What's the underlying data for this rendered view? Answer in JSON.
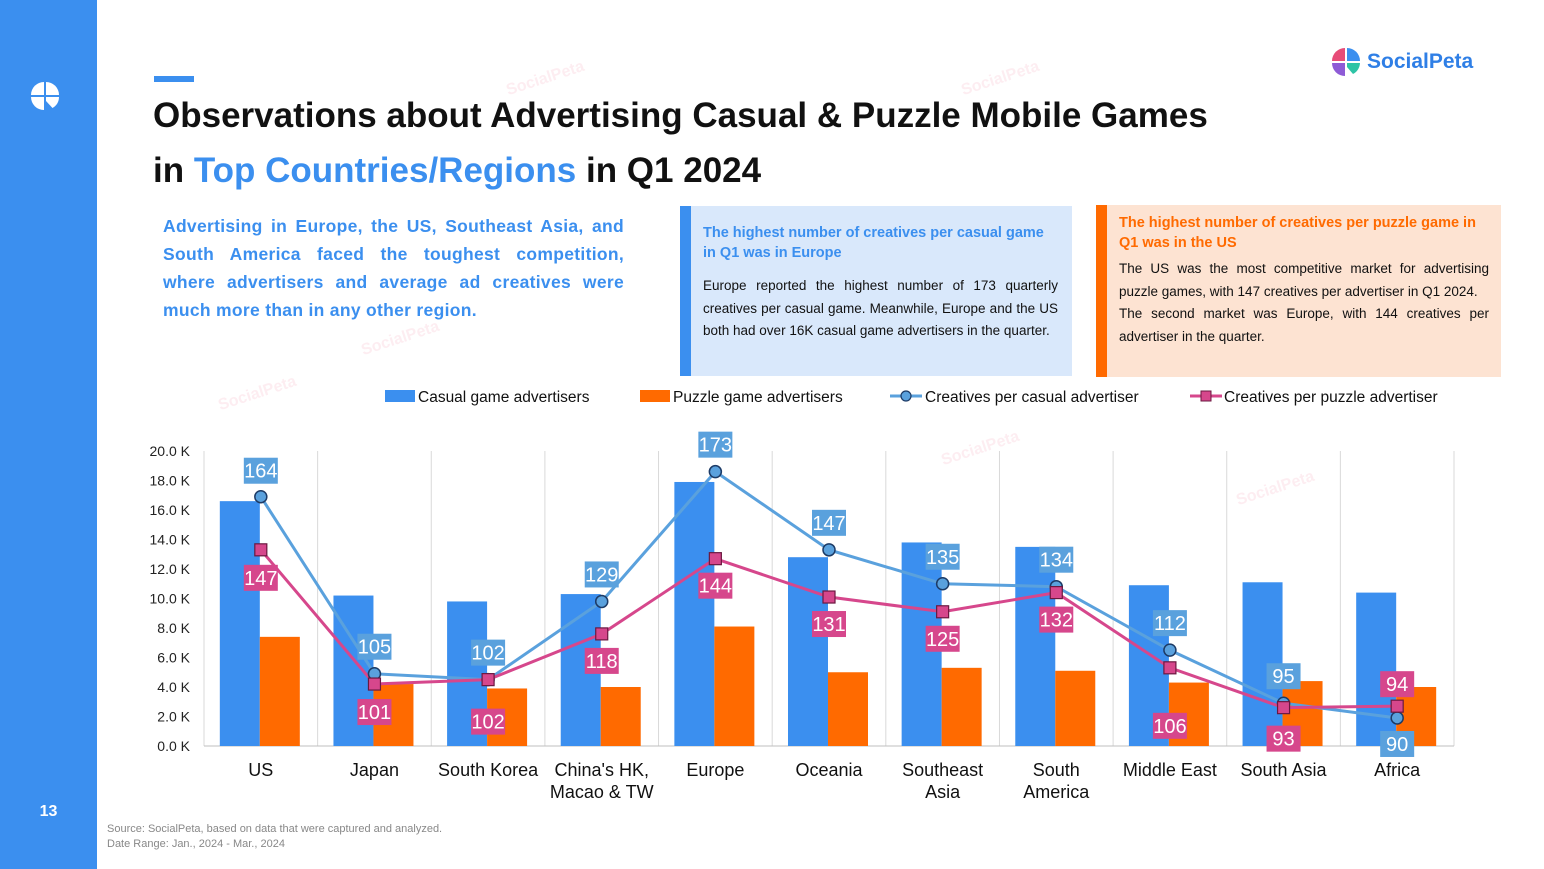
{
  "page": {
    "number": "13",
    "brand": "SocialPeta",
    "title_line1": "Observations about Advertising Casual & Puzzle Mobile Games",
    "title_line2_pre": "in",
    "title_line2_highlight": "Top Countries/Regions",
    "title_line2_post": "in Q1 2024",
    "intro": "Advertising in Europe, the US, Southeast Asia, and South America faced the toughest competition, where advertisers and average ad creatives were much more than in any other region.",
    "source_line1": "Source: SocialPeta, based on data that were captured and analyzed.",
    "source_line2": "Date Range: Jan., 2024 - Mar., 2024",
    "watermark": "SocialPeta"
  },
  "box_casual": {
    "title": "The highest number of creatives per casual game in Q1 was in Europe",
    "body": "Europe reported the highest number of 173 quarterly creatives per casual game. Meanwhile, Europe and the US both had over 16K casual game advertisers in the quarter."
  },
  "box_puzzle": {
    "title": "The highest number of creatives per puzzle game in Q1 was in the US",
    "body1": "The US was the most competitive market for advertising puzzle games, with 147 creatives per advertiser in Q1 2024.",
    "body2": "The second market was Europe, with 144 creatives per advertiser in the quarter."
  },
  "colors": {
    "accent": "#3b8fef",
    "casual_bar": "#3b8fef",
    "puzzle_bar": "#ff6a00",
    "casual_line": "#5aa1dd",
    "puzzle_line": "#d6478c",
    "casual_label_bg": "#5aa1dd",
    "puzzle_label_bg": "#d6478c"
  },
  "chart_data": {
    "type": "bar",
    "categories": [
      "US",
      "Japan",
      "South Korea",
      "China's HK, Macao & TW",
      "Europe",
      "Oceania",
      "Southeast Asia",
      "South America",
      "Middle East",
      "South Asia",
      "Africa"
    ],
    "category_lines": [
      [
        "US"
      ],
      [
        "Japan"
      ],
      [
        "South Korea"
      ],
      [
        "China's HK,",
        "Macao & TW"
      ],
      [
        "Europe"
      ],
      [
        "Oceania"
      ],
      [
        "Southeast",
        "Asia"
      ],
      [
        "South",
        "America"
      ],
      [
        "Middle East"
      ],
      [
        "South Asia"
      ],
      [
        "Africa"
      ]
    ],
    "ylim": [
      0,
      20000
    ],
    "yticks": [
      0,
      2000,
      4000,
      6000,
      8000,
      10000,
      12000,
      14000,
      16000,
      18000,
      20000
    ],
    "ytick_labels": [
      "0.0 K",
      "2.0 K",
      "4.0 K",
      "6.0 K",
      "8.0 K",
      "10.0 K",
      "12.0 K",
      "14.0 K",
      "16.0 K",
      "18.0 K",
      "20.0 K"
    ],
    "grid": "vertical category separators",
    "legend_position": "top",
    "series": [
      {
        "name": "Casual game advertisers",
        "kind": "bar",
        "values": [
          16600,
          10200,
          9800,
          10300,
          17900,
          12800,
          13800,
          13500,
          10900,
          11100,
          10400
        ]
      },
      {
        "name": "Puzzle game advertisers",
        "kind": "bar",
        "values": [
          7400,
          4200,
          3900,
          4000,
          8100,
          5000,
          5300,
          5100,
          4300,
          4400,
          4000
        ]
      },
      {
        "name": "Creatives per casual advertiser",
        "kind": "line",
        "labels": [
          164,
          105,
          102,
          129,
          173,
          147,
          135,
          134,
          112,
          95,
          90
        ],
        "positions_k": [
          16.9,
          4.9,
          4.5,
          9.8,
          18.6,
          13.3,
          11.0,
          10.8,
          6.5,
          2.9,
          1.9
        ]
      },
      {
        "name": "Creatives per puzzle advertiser",
        "kind": "line",
        "labels": [
          147,
          101,
          102,
          118,
          144,
          131,
          125,
          132,
          106,
          93,
          94
        ],
        "positions_k": [
          13.3,
          4.2,
          4.5,
          7.6,
          12.7,
          10.1,
          9.1,
          10.4,
          5.3,
          2.6,
          2.7
        ]
      }
    ]
  }
}
